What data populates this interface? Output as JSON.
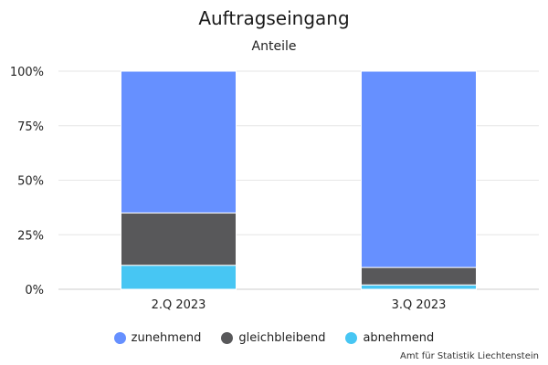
{
  "chart_data": {
    "type": "bar",
    "stacked": true,
    "title": "Auftragseingang",
    "subtitle": "Anteile",
    "categories": [
      "2.Q 2023",
      "3.Q 2023"
    ],
    "series": [
      {
        "name": "zunehmend",
        "color": "#6690ff",
        "values": [
          65,
          90
        ]
      },
      {
        "name": "gleichbleibend",
        "color": "#58585a",
        "values": [
          24,
          8
        ]
      },
      {
        "name": "abnehmend",
        "color": "#47c6f3",
        "values": [
          11,
          2
        ]
      }
    ],
    "y_ticks": [
      "0%",
      "25%",
      "50%",
      "75%",
      "100%"
    ],
    "ylim": [
      0,
      100
    ],
    "grid": true,
    "legend_position": "bottom"
  },
  "credits": "Amt für Statistik Liechtenstein"
}
